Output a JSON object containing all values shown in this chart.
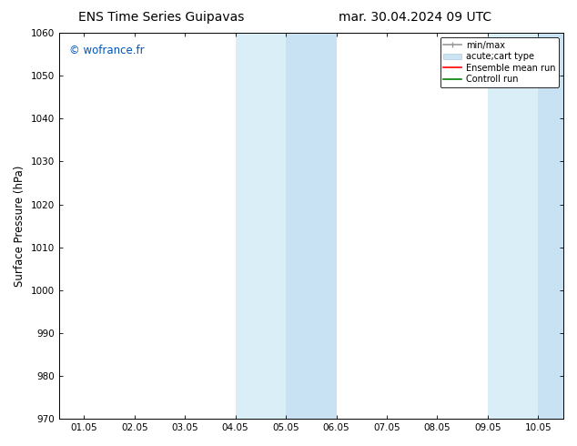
{
  "title_left": "ENS Time Series Guipavas",
  "title_right": "mar. 30.04.2024 09 UTC",
  "ylabel": "Surface Pressure (hPa)",
  "ylim": [
    970,
    1060
  ],
  "yticks": [
    970,
    980,
    990,
    1000,
    1010,
    1020,
    1030,
    1040,
    1050,
    1060
  ],
  "xlabels": [
    "01.05",
    "02.05",
    "03.05",
    "04.05",
    "05.05",
    "06.05",
    "07.05",
    "08.05",
    "09.05",
    "10.05"
  ],
  "xtick_positions": [
    0,
    1,
    2,
    3,
    4,
    5,
    6,
    7,
    8,
    9
  ],
  "shaded_regions": [
    {
      "xmin": 3.0,
      "xmax": 3.5,
      "color": "#ddedf8"
    },
    {
      "xmin": 3.5,
      "xmax": 4.0,
      "color": "#cce3f5"
    },
    {
      "xmin": 4.0,
      "xmax": 5.0,
      "color": "#ddedf8"
    },
    {
      "xmin": 7.5,
      "xmax": 8.0,
      "color": "#ddedf8"
    },
    {
      "xmin": 8.0,
      "xmax": 8.5,
      "color": "#cce3f5"
    },
    {
      "xmin": 8.5,
      "xmax": 9.5,
      "color": "#ddedf8"
    }
  ],
  "watermark": "© wofrance.fr",
  "watermark_color": "#0055bb",
  "background_color": "#ffffff",
  "legend_items": [
    {
      "label": "min/max",
      "color": "#999999",
      "lw": 1.2
    },
    {
      "label": "acute;cart type",
      "color": "#cce0f0",
      "lw": 7
    },
    {
      "label": "Ensemble mean run",
      "color": "#ff0000",
      "lw": 1.2
    },
    {
      "label": "Controll run",
      "color": "#008000",
      "lw": 1.2
    }
  ],
  "title_fontsize": 10,
  "tick_fontsize": 7.5,
  "ylabel_fontsize": 8.5,
  "figsize": [
    6.34,
    4.9
  ],
  "dpi": 100
}
